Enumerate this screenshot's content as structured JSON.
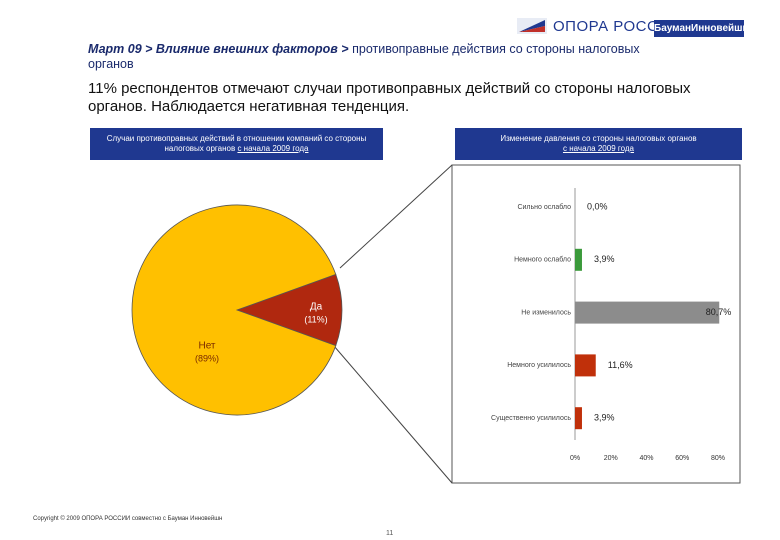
{
  "header": {
    "breadcrumb_main": "Март 09 > Влияние внешних факторов >",
    "breadcrumb_topic": "противоправные действия со стороны налоговых органов",
    "logo_primary": "ОПОРА РОССИИ",
    "logo_partner": "БауманИнновейшн"
  },
  "summary": "11% респондентов отмечают случаи противоправных действий со стороны налоговых органов. Наблюдается негативная тенденция.",
  "chart_data": [
    {
      "type": "pie",
      "title": "Случаи противоправных действий в отношении компаний со стороны налоговых органов",
      "title_period": "с начала 2009 года",
      "categories": [
        "Да",
        "Нет"
      ],
      "values": [
        11,
        89
      ],
      "value_labels": [
        "(11%)",
        "(89%)"
      ],
      "colors": [
        "#b0280f",
        "#ffc000"
      ]
    },
    {
      "type": "hbar",
      "title": "Изменение давления со стороны налоговых органов",
      "title_period": "с начала 2009 года",
      "categories": [
        "Сильно ослабло",
        "Немного ослабло",
        "Не изменилось",
        "Немного усилилось",
        "Существенно усилилось"
      ],
      "values": [
        0,
        3.9,
        80.7,
        11.6,
        3.9
      ],
      "value_labels": [
        "0,0%",
        "3,9%",
        "80,7%",
        "11,6%",
        "3,9%"
      ],
      "colors": [
        "#3b9a3b",
        "#3b9a3b",
        "#8c8c8c",
        "#c0300a",
        "#c0300a"
      ],
      "xlim": [
        0,
        80
      ],
      "xticks": [
        {
          "value": 0,
          "label": "0%"
        },
        {
          "value": 20,
          "label": "20%"
        },
        {
          "value": 40,
          "label": "40%"
        },
        {
          "value": 60,
          "label": "60%"
        },
        {
          "value": 80,
          "label": "80%"
        }
      ]
    }
  ],
  "footer": "Copyright © 2009 ОПОРА РОССИИ совместно с Бауман Инновейшн",
  "page_number": "11"
}
